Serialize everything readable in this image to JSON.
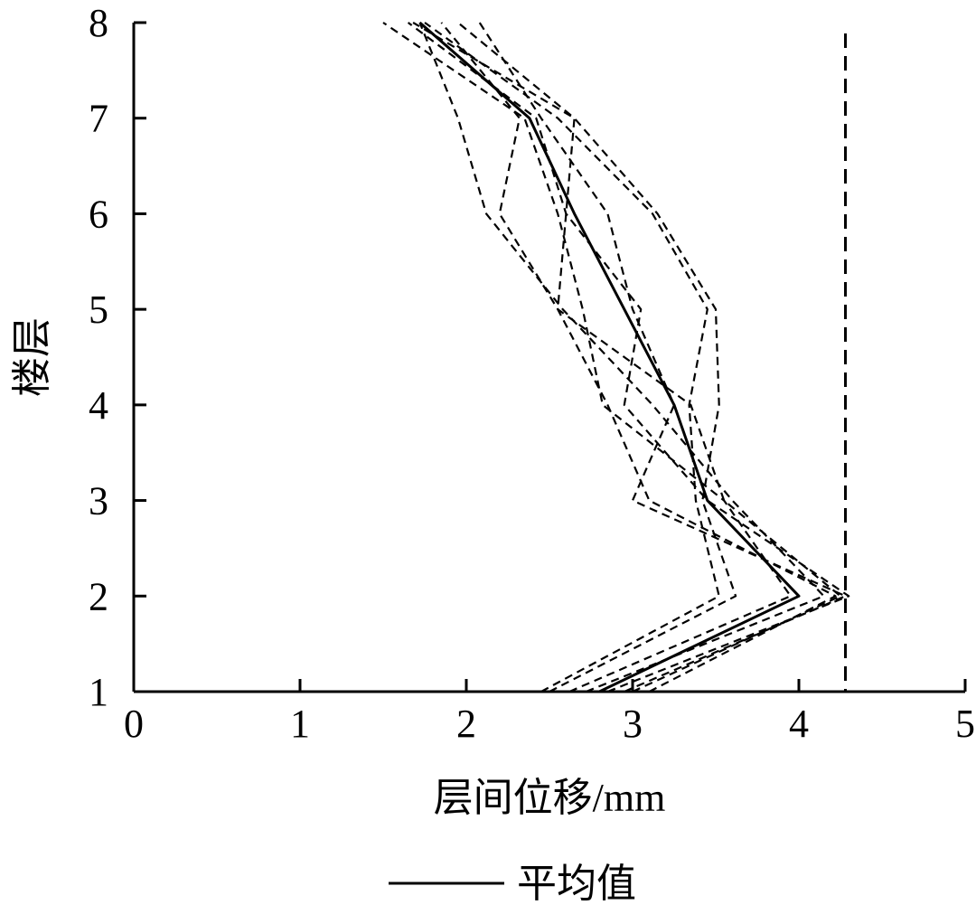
{
  "chart_data": {
    "type": "line",
    "title": "",
    "xlabel": "层间位移/mm",
    "ylabel": "楼层",
    "xlim": [
      0,
      5
    ],
    "ylim": [
      1,
      8
    ],
    "x_ticks": [
      "0",
      "1",
      "2",
      "3",
      "4",
      "5"
    ],
    "y_ticks": [
      "1",
      "2",
      "3",
      "4",
      "5",
      "6",
      "7",
      "8"
    ],
    "grid": false,
    "legend_position": "bottom-center",
    "legend_label": "平均值",
    "y": [
      1,
      2,
      3,
      4,
      5,
      6,
      7,
      8
    ],
    "series": [
      {
        "style": "dashed",
        "values": [
          2.45,
          3.52,
          3.38,
          3.34,
          3.45,
          3.12,
          2.55,
          1.75
        ]
      },
      {
        "style": "dashed",
        "values": [
          2.5,
          3.62,
          3.42,
          3.52,
          3.5,
          3.15,
          2.65,
          1.68
        ]
      },
      {
        "style": "dashed",
        "values": [
          2.62,
          3.95,
          3.55,
          2.82,
          2.7,
          2.55,
          2.35,
          1.5
        ]
      },
      {
        "style": "dashed",
        "values": [
          2.72,
          4.15,
          3.6,
          3.12,
          2.58,
          2.12,
          1.95,
          1.72
        ]
      },
      {
        "style": "dashed",
        "values": [
          2.85,
          4.3,
          3.45,
          2.95,
          3.05,
          2.6,
          2.42,
          1.65
        ]
      },
      {
        "style": "dashed",
        "values": [
          3.0,
          4.25,
          3.55,
          3.35,
          2.55,
          2.6,
          2.65,
          1.95
        ]
      },
      {
        "style": "dashed",
        "values": [
          3.1,
          4.22,
          3.1,
          2.85,
          2.55,
          2.2,
          2.32,
          1.85
        ]
      },
      {
        "style": "dashed",
        "values": [
          2.95,
          4.28,
          3.0,
          3.25,
          3.0,
          2.85,
          2.45,
          2.08
        ]
      },
      {
        "style": "solid",
        "name": "平均值",
        "values": [
          2.8,
          4.0,
          3.45,
          3.25,
          2.95,
          2.65,
          2.38,
          1.72
        ]
      }
    ],
    "vertical_reference_line": {
      "style": "dashed",
      "x": 4.28
    }
  }
}
